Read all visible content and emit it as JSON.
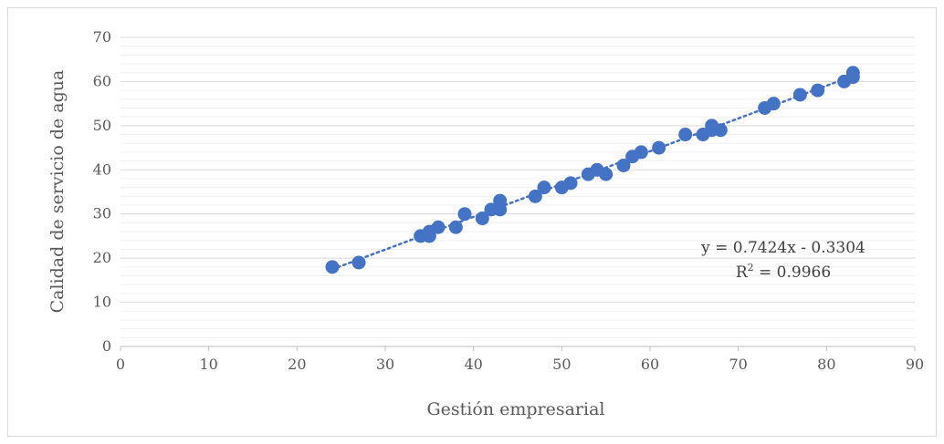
{
  "chart_data": {
    "type": "scatter",
    "title": "",
    "xlabel": "Gestión empresarial",
    "ylabel": "Calidad de servicio de agua",
    "xlim": [
      0,
      90
    ],
    "ylim": [
      0,
      70
    ],
    "x_ticks": [
      "0",
      "10",
      "20",
      "30",
      "40",
      "50",
      "60",
      "70",
      "80",
      "90"
    ],
    "y_ticks": [
      "0",
      "10",
      "20",
      "30",
      "40",
      "50",
      "60",
      "70"
    ],
    "grid": true,
    "point_color": "#4472c4",
    "trendline": {
      "type": "linear",
      "slope": 0.7424,
      "intercept": -0.3304,
      "x_range": [
        24,
        83
      ],
      "style": "dotted",
      "equation": "y = 0.7424x - 0.3304",
      "r2_prefix": "R",
      "r2_sup": "2",
      "r2_value": " = 0.9966"
    },
    "points": [
      {
        "x": 24,
        "y": 18
      },
      {
        "x": 27,
        "y": 19
      },
      {
        "x": 34,
        "y": 25
      },
      {
        "x": 35,
        "y": 25
      },
      {
        "x": 35,
        "y": 26
      },
      {
        "x": 36,
        "y": 27
      },
      {
        "x": 38,
        "y": 27
      },
      {
        "x": 39,
        "y": 30
      },
      {
        "x": 41,
        "y": 29
      },
      {
        "x": 42,
        "y": 31
      },
      {
        "x": 43,
        "y": 31
      },
      {
        "x": 43,
        "y": 33
      },
      {
        "x": 47,
        "y": 34
      },
      {
        "x": 48,
        "y": 36
      },
      {
        "x": 50,
        "y": 36
      },
      {
        "x": 51,
        "y": 37
      },
      {
        "x": 53,
        "y": 39
      },
      {
        "x": 54,
        "y": 40
      },
      {
        "x": 55,
        "y": 39
      },
      {
        "x": 57,
        "y": 41
      },
      {
        "x": 58,
        "y": 43
      },
      {
        "x": 59,
        "y": 44
      },
      {
        "x": 61,
        "y": 45
      },
      {
        "x": 64,
        "y": 48
      },
      {
        "x": 66,
        "y": 48
      },
      {
        "x": 67,
        "y": 49
      },
      {
        "x": 67,
        "y": 50
      },
      {
        "x": 68,
        "y": 49
      },
      {
        "x": 73,
        "y": 54
      },
      {
        "x": 74,
        "y": 55
      },
      {
        "x": 77,
        "y": 57
      },
      {
        "x": 79,
        "y": 58
      },
      {
        "x": 82,
        "y": 60
      },
      {
        "x": 83,
        "y": 61
      },
      {
        "x": 83,
        "y": 62
      }
    ]
  }
}
